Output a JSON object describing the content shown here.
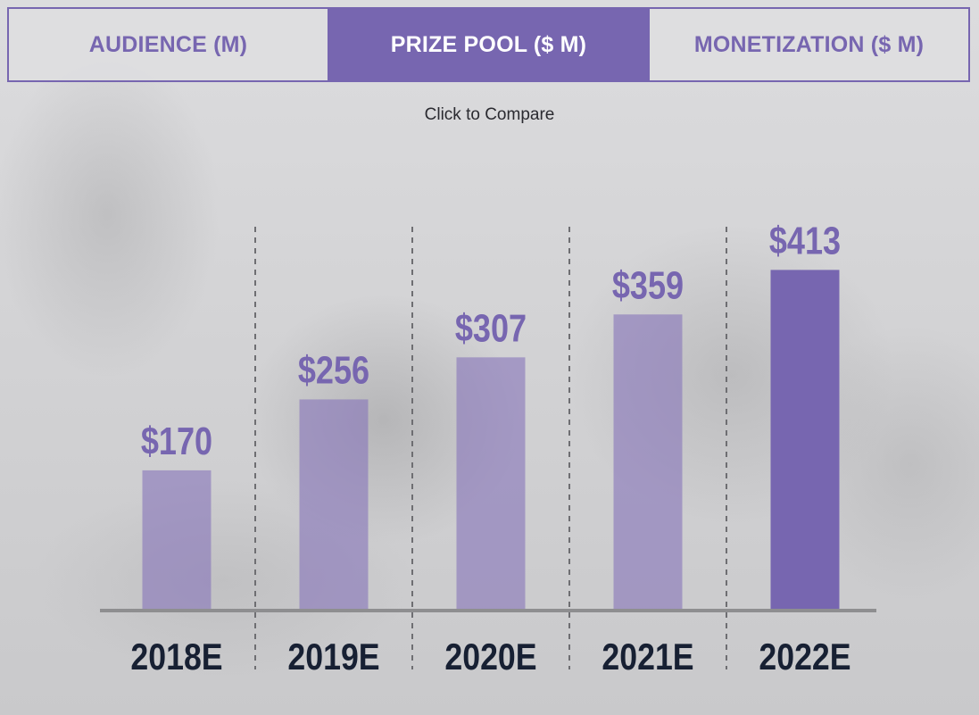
{
  "tabs": [
    {
      "label": "AUDIENCE (M)",
      "active": false
    },
    {
      "label": "PRIZE POOL ($ M)",
      "active": true
    },
    {
      "label": "MONETIZATION ($ M)",
      "active": false
    }
  ],
  "hint": "Click to Compare",
  "colors": {
    "accent": "#7766b0",
    "bar_faded": "rgba(136,118,185,0.62)",
    "bar_active": "#7766b0",
    "category_text": "#172033",
    "baseline": "#8e8e90",
    "divider": "#6e6e72"
  },
  "chart_data": {
    "type": "bar",
    "title": "",
    "xlabel": "",
    "ylabel": "",
    "categories": [
      "2018E",
      "2019E",
      "2020E",
      "2021E",
      "2022E"
    ],
    "values": [
      170,
      256,
      307,
      359,
      413
    ],
    "value_labels": [
      "$170",
      "$256",
      "$307",
      "$359",
      "$413"
    ],
    "highlighted_index": 4,
    "ylim": [
      0,
      450
    ],
    "grid": false,
    "legend": "none"
  }
}
